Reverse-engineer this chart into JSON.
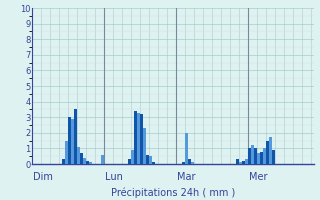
{
  "background_color": "#dff2f2",
  "plot_bg_color": "#dff2f2",
  "bar_color_light": "#5599dd",
  "bar_color_dark": "#1155aa",
  "grid_color_major": "#aacccc",
  "grid_color_minor": "#ccdddd",
  "axis_line_color": "#334499",
  "text_color": "#334499",
  "ylim": [
    0,
    10
  ],
  "yticks": [
    0,
    1,
    2,
    3,
    4,
    5,
    6,
    7,
    8,
    9,
    10
  ],
  "day_labels": [
    "Dim",
    "Lun",
    "Mar",
    "Mer"
  ],
  "xlabel": "Précipitations 24h ( mm )",
  "vline_color": "#778899",
  "n_bars": 96,
  "values": [
    0.0,
    0.0,
    0.0,
    0.0,
    0.0,
    0.0,
    0.0,
    0.0,
    0.0,
    0.0,
    0.3,
    1.5,
    3.0,
    2.9,
    3.5,
    1.1,
    0.7,
    0.4,
    0.2,
    0.1,
    0.0,
    0.0,
    0.0,
    0.6,
    0.0,
    0.0,
    0.0,
    0.0,
    0.0,
    0.0,
    0.0,
    0.0,
    0.3,
    0.9,
    3.4,
    3.3,
    3.2,
    2.3,
    0.6,
    0.5,
    0.1,
    0.0,
    0.0,
    0.0,
    0.0,
    0.0,
    0.0,
    0.0,
    0.0,
    0.0,
    0.1,
    2.0,
    0.3,
    0.1,
    0.0,
    0.0,
    0.0,
    0.0,
    0.0,
    0.0,
    0.0,
    0.0,
    0.0,
    0.0,
    0.0,
    0.0,
    0.0,
    0.0,
    0.3,
    0.1,
    0.2,
    0.3,
    1.0,
    1.2,
    1.0,
    0.7,
    0.8,
    1.0,
    1.5,
    1.7,
    0.9,
    0.0,
    0.0,
    0.0,
    0.0,
    0.0,
    0.0,
    0.0,
    0.0,
    0.0,
    0.0,
    0.0,
    0.0,
    0.0
  ],
  "day_bar_starts": [
    0,
    24,
    48,
    72
  ],
  "vline_positions": [
    24,
    48,
    72
  ]
}
